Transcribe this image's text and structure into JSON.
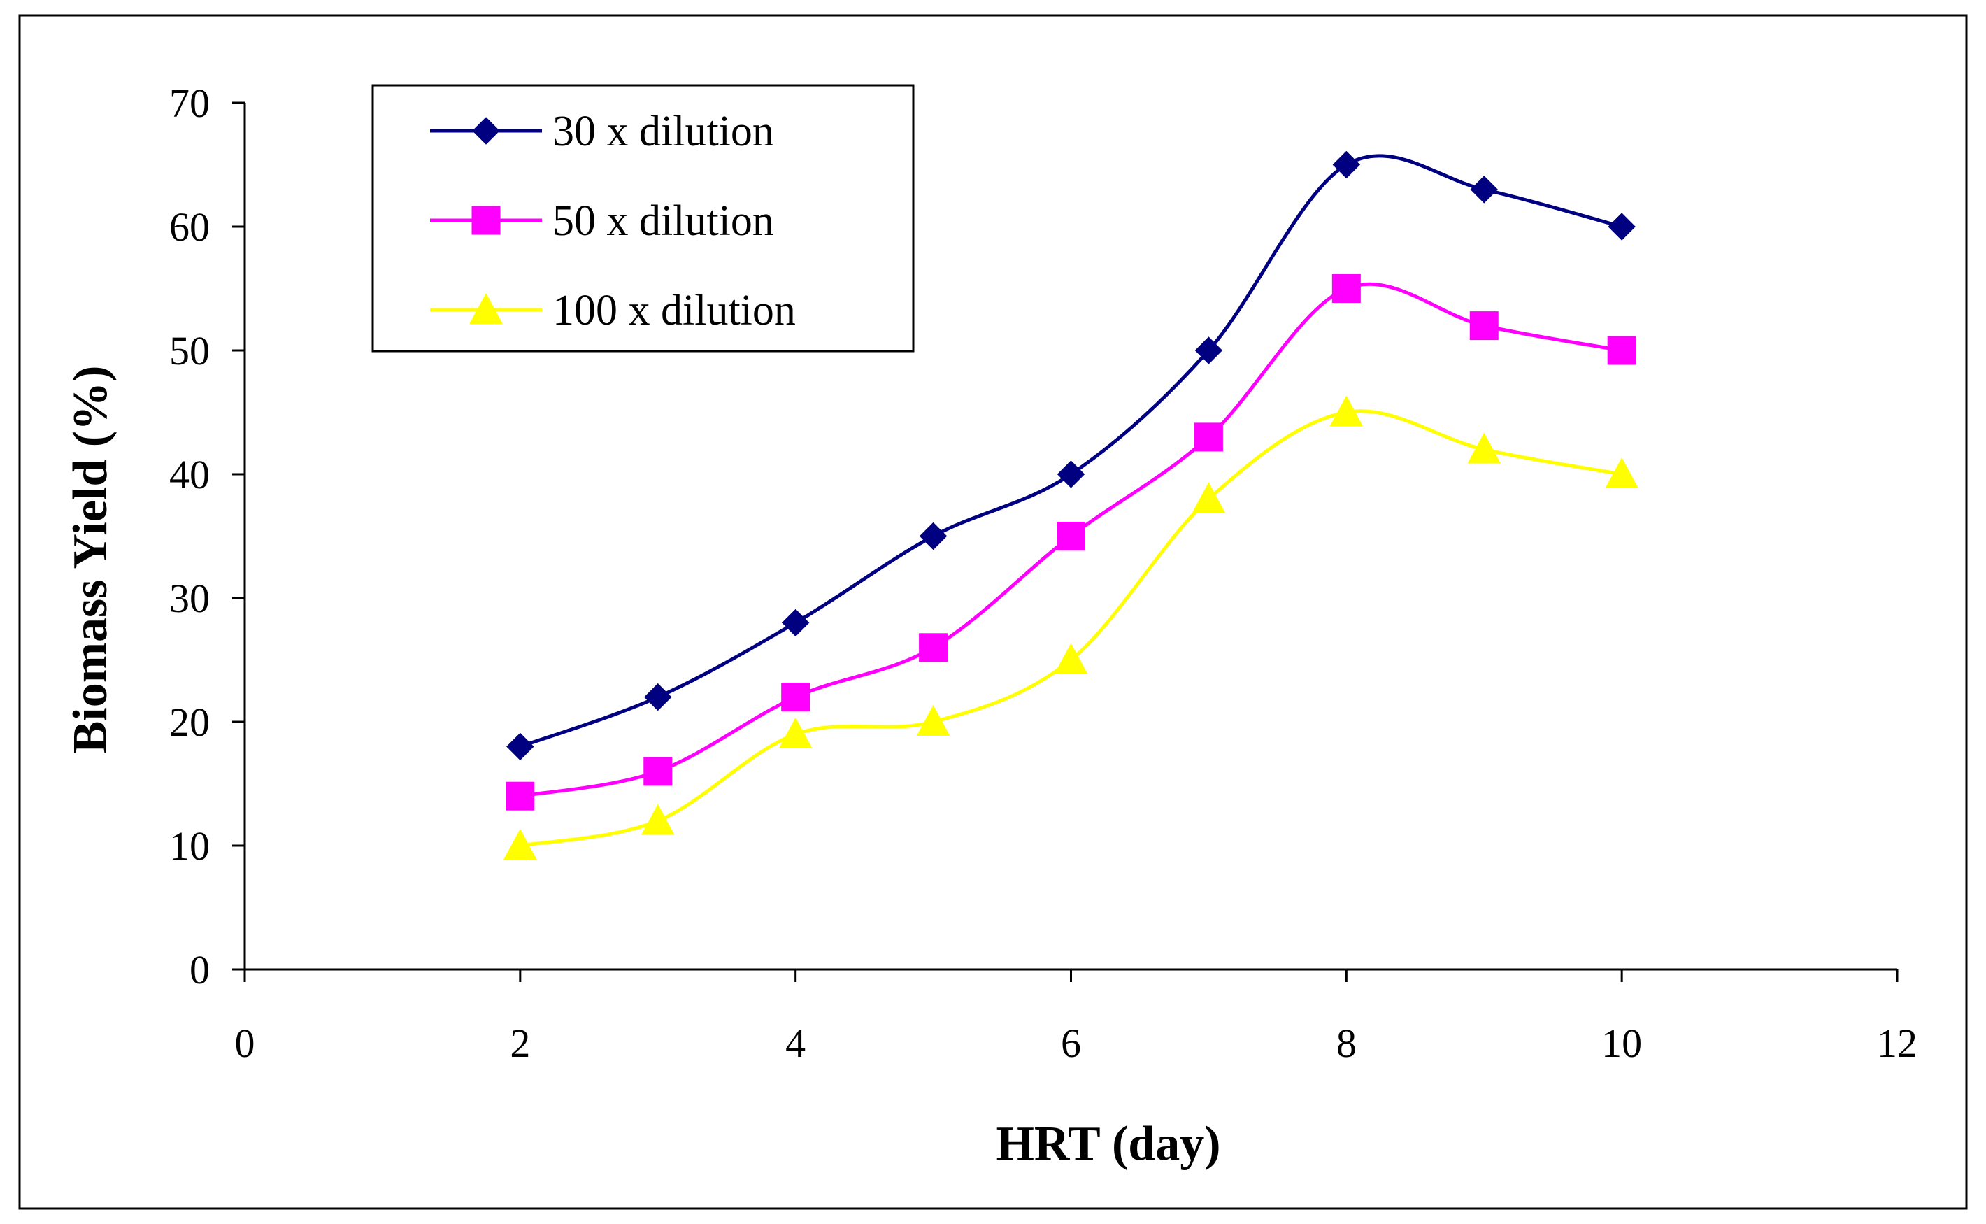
{
  "chart_data": {
    "type": "line",
    "title": "",
    "xlabel": "HRT (day)",
    "ylabel": "Biomass Yield (%)",
    "xlim": [
      0,
      12
    ],
    "ylim": [
      0,
      70
    ],
    "xticks": [
      0,
      2,
      4,
      6,
      8,
      10,
      12
    ],
    "yticks": [
      0,
      10,
      20,
      30,
      40,
      50,
      60,
      70
    ],
    "x": [
      2,
      3,
      4,
      5,
      6,
      7,
      8,
      9,
      10
    ],
    "grid": false,
    "legend_position": "top-left",
    "series": [
      {
        "name": "30 x dilution",
        "values": [
          18,
          22,
          28,
          35,
          40,
          50,
          65,
          63,
          60
        ],
        "color": "#000080",
        "marker": "diamond"
      },
      {
        "name": "50 x dilution",
        "values": [
          14,
          16,
          22,
          26,
          35,
          43,
          55,
          52,
          50
        ],
        "color": "#ff00ff",
        "marker": "square"
      },
      {
        "name": "100 x dilution",
        "values": [
          10,
          12,
          19,
          20,
          25,
          38,
          45,
          42,
          40
        ],
        "color": "#ffff00",
        "marker": "triangle"
      }
    ]
  }
}
